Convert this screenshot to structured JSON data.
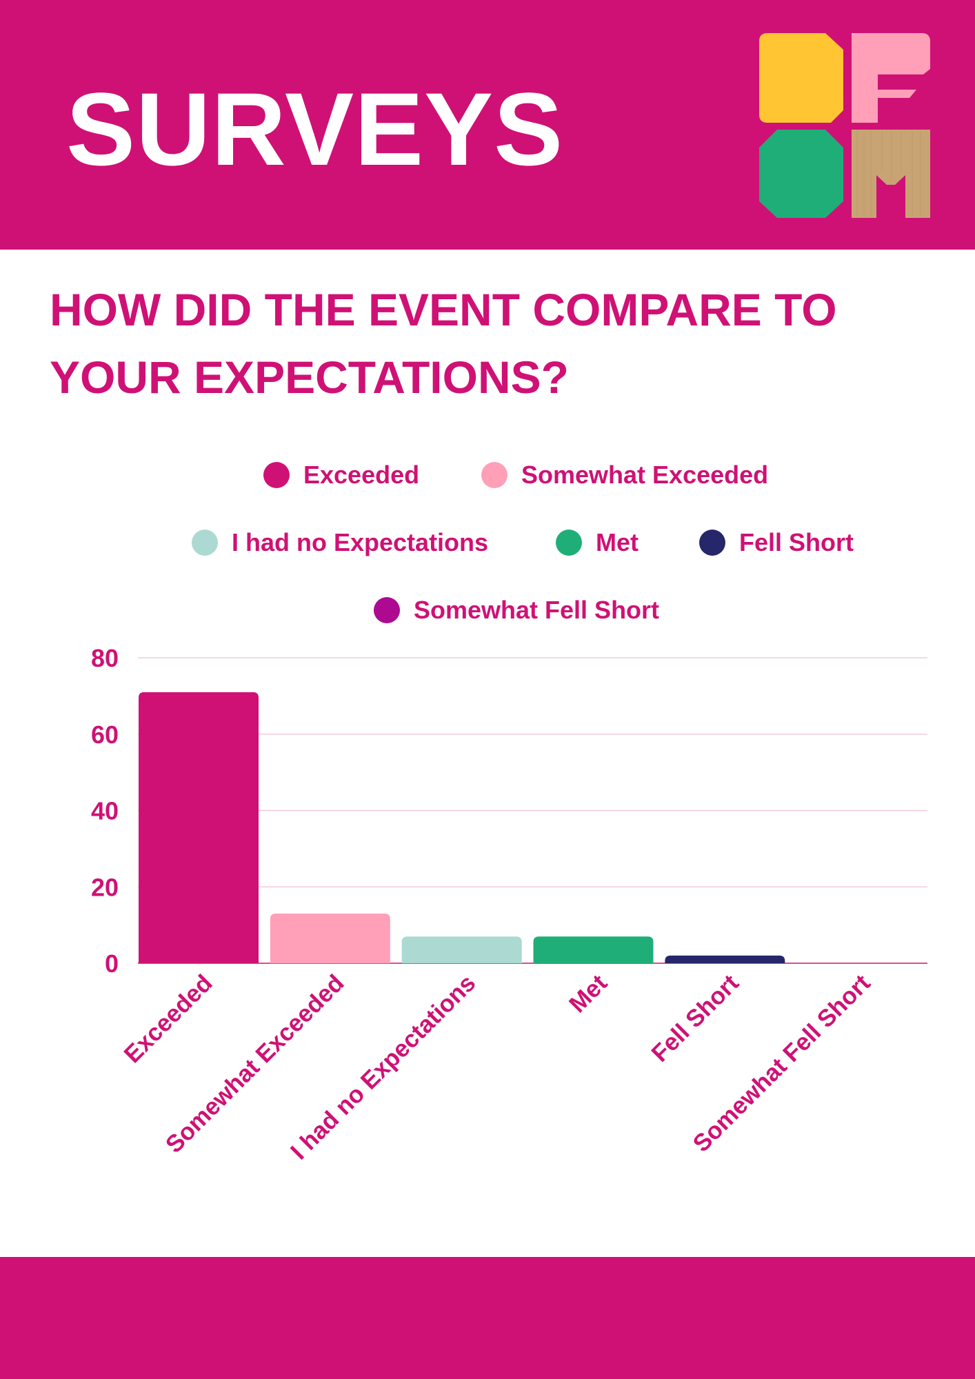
{
  "header": {
    "title": "SURVEYS",
    "logo_letters": [
      "D",
      "F",
      "O",
      "M"
    ]
  },
  "question": "HOW DID THE EVENT COMPARE TO YOUR EXPECTATIONS?",
  "colors": {
    "brand": "#cf1175",
    "white": "#ffffff",
    "logo_yellow": "#ffc533",
    "logo_pink": "#ff9fb8",
    "logo_green": "#1fae78",
    "logo_tan": "#c8a475",
    "gridline": "#f3c0d8"
  },
  "legend": [
    {
      "label": "Exceeded",
      "color": "#cf1175"
    },
    {
      "label": "Somewhat Exceeded",
      "color": "#ff9fb8"
    },
    {
      "label": "I had no Expectations",
      "color": "#acd9d2"
    },
    {
      "label": "Met",
      "color": "#1fae78"
    },
    {
      "label": "Fell Short",
      "color": "#26266a"
    },
    {
      "label": "Somewhat Fell Short",
      "color": "#ad0a91"
    }
  ],
  "chart_data": {
    "type": "bar",
    "title": "HOW DID THE EVENT COMPARE TO YOUR EXPECTATIONS?",
    "categories": [
      "Exceeded",
      "Somewhat Exceeded",
      "I had no Expectations",
      "Met",
      "Fell Short",
      "Somewhat Fell Short"
    ],
    "values": [
      71,
      13,
      7,
      7,
      2,
      0
    ],
    "colors": [
      "#cf1175",
      "#ff9fb8",
      "#acd9d2",
      "#1fae78",
      "#26266a",
      "#ad0a91"
    ],
    "ylim": [
      0,
      80
    ],
    "yticks": [
      0,
      20,
      40,
      60,
      80
    ],
    "xlabel": "",
    "ylabel": "",
    "grid": true,
    "legend_position": "top"
  }
}
